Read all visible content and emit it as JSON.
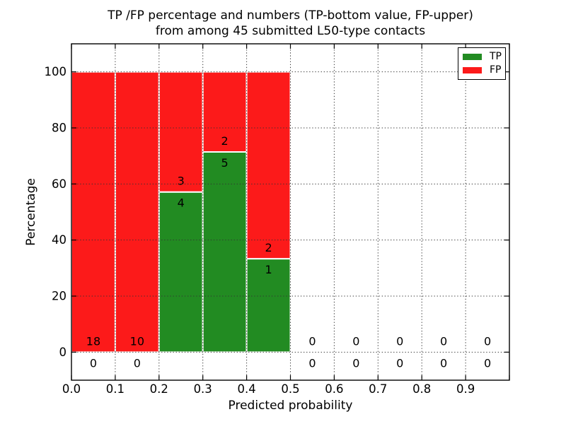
{
  "chart_data": {
    "type": "bar",
    "subtype": "stacked-percentage-histogram",
    "title_line1": "TP /FP percentage and numbers (TP-bottom value, FP-upper)",
    "title_line2": "from among 45 submitted L50-type contacts",
    "xlabel": "Predicted probability",
    "ylabel": "Percentage",
    "xlim": [
      0.0,
      1.0
    ],
    "ylim": [
      -10,
      110
    ],
    "bin_width": 0.1,
    "bin_starts": [
      0.0,
      0.1,
      0.2,
      0.3,
      0.4,
      0.5,
      0.6,
      0.7,
      0.8,
      0.9
    ],
    "xtick_labels": [
      "0.0",
      "0.1",
      "0.2",
      "0.3",
      "0.4",
      "0.5",
      "0.6",
      "0.7",
      "0.8",
      "0.9"
    ],
    "ytick_values": [
      0,
      20,
      40,
      60,
      80,
      100
    ],
    "series": [
      {
        "name": "TP",
        "color": "#228b22",
        "counts": [
          0,
          0,
          4,
          5,
          1,
          0,
          0,
          0,
          0,
          0
        ]
      },
      {
        "name": "FP",
        "color": "#fc1a1a",
        "counts": [
          18,
          10,
          3,
          2,
          2,
          0,
          0,
          0,
          0,
          0
        ]
      }
    ],
    "tp_percent_by_bin": [
      0,
      0,
      57.1,
      71.4,
      33.3,
      null,
      null,
      null,
      null,
      null
    ],
    "fp_percent_by_bin": [
      100,
      100,
      42.9,
      28.6,
      66.7,
      null,
      null,
      null,
      null,
      null
    ],
    "total_contacts": 45,
    "grid": {
      "style": "dotted",
      "color": "#333333",
      "axisbelow": false
    },
    "bar_edge_color": "#ffffff",
    "legend_position": "upper right"
  }
}
